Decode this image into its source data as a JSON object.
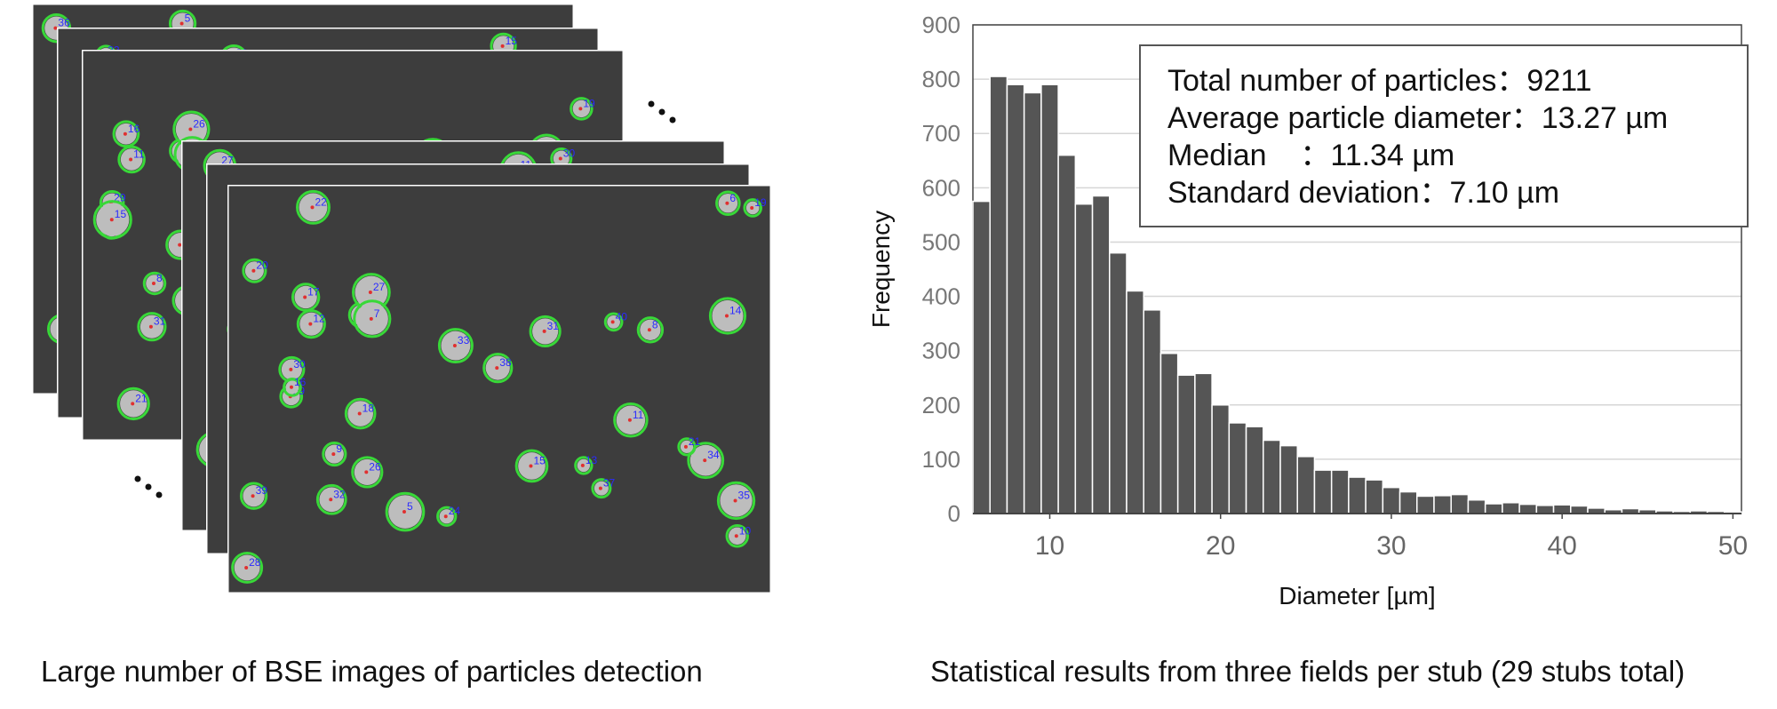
{
  "captions": {
    "left": "Large number of BSE images of particles detection",
    "right": "Statistical results from three fields per stub (29 stubs total)"
  },
  "stats": {
    "total_label": "Total number of particles：",
    "total_value": "9211",
    "avg_label": "Average particle diameter：",
    "avg_value": "13.27 µm",
    "median_label": "Median    ：",
    "median_value": "11.34 µm",
    "std_label": "Standard deviation：",
    "std_value": "7.10 µm"
  },
  "micrograph_labels": [
    "40",
    "38",
    "39",
    "37",
    "35",
    "36",
    "34",
    "33",
    "32",
    "31",
    "30",
    "29",
    "28",
    "27",
    "26",
    "24",
    "22",
    "21",
    "20",
    "19",
    "18",
    "17",
    "16",
    "15",
    "14",
    "13",
    "12",
    "11",
    "10",
    "9",
    "8",
    "7",
    "6",
    "5",
    "4",
    "3",
    "2",
    "1"
  ],
  "colors": {
    "bar": "#555555",
    "bar_border": "#ffffff",
    "sem_background": "#3d3d3d",
    "particle": "#bdbdbd",
    "contour": "#38d838",
    "label": "#2a2aff",
    "centroid": "#e03030"
  },
  "chart_data": {
    "type": "bar",
    "xlabel": "Diameter [µm]",
    "ylabel": "Frequency",
    "xlim": [
      5.5,
      50.5
    ],
    "ylim": [
      0,
      900
    ],
    "yticks": [
      0,
      100,
      200,
      300,
      400,
      500,
      600,
      700,
      800,
      900
    ],
    "xticks": [
      10,
      20,
      30,
      40,
      50
    ],
    "grid": "horizontal",
    "bin_width": 1,
    "x": [
      6,
      7,
      8,
      9,
      10,
      11,
      12,
      13,
      14,
      15,
      16,
      17,
      18,
      19,
      20,
      21,
      22,
      23,
      24,
      25,
      26,
      27,
      28,
      29,
      30,
      31,
      32,
      33,
      34,
      35,
      36,
      37,
      38,
      39,
      40,
      41,
      42,
      43,
      44,
      45,
      46,
      47,
      48,
      49,
      50
    ],
    "values": [
      575,
      805,
      790,
      775,
      790,
      660,
      570,
      585,
      480,
      410,
      375,
      295,
      255,
      258,
      200,
      167,
      160,
      135,
      125,
      105,
      80,
      80,
      67,
      62,
      48,
      40,
      32,
      33,
      35,
      25,
      18,
      20,
      17,
      15,
      16,
      14,
      10,
      7,
      9,
      7,
      5,
      4,
      5,
      4,
      3
    ]
  }
}
